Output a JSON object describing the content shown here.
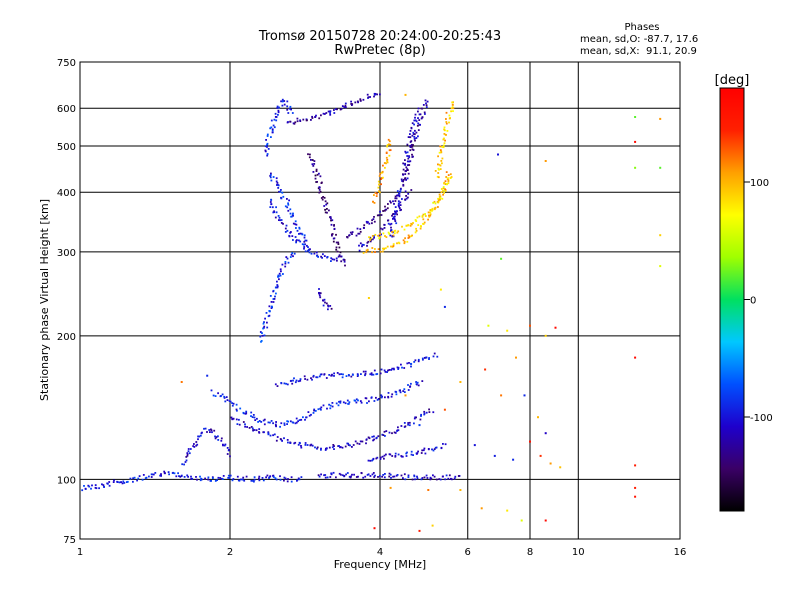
{
  "chart_data": {
    "type": "scatter",
    "title": "Tromsø 20150728 20:24:00-20:25:43",
    "subtitle": "RwPretec (8p)",
    "xlabel": "Frequency [MHz]",
    "ylabel": "Stationary phase Virtual Height [km]",
    "x_scale": "log",
    "y_scale": "log",
    "xlim": [
      1,
      16
    ],
    "ylim": [
      75,
      750
    ],
    "x_ticks": [
      1,
      2,
      4,
      6,
      8,
      10,
      16
    ],
    "y_ticks": [
      75,
      100,
      200,
      300,
      400,
      500,
      600,
      750
    ],
    "grid": true,
    "phases_box": {
      "title": "Phases",
      "line1": "mean, sd,O: -87.7, 17.6",
      "line2": "mean, sd,X:  91.1, 20.9"
    },
    "colorbar": {
      "label": "[deg]",
      "range": [
        -180,
        180
      ],
      "ticks": [
        100,
        0,
        -100
      ],
      "colors": [
        "#000000",
        "#3a0066",
        "#1e00cc",
        "#0050ff",
        "#00c8ff",
        "#00e060",
        "#a0ff00",
        "#ffff00",
        "#ffa000",
        "#ff2000",
        "#ff0000"
      ]
    },
    "trace_series": [
      {
        "x": [
          1.0,
          1.1,
          1.2,
          1.3,
          1.4,
          1.5,
          1.7,
          1.9,
          2.0,
          2.2,
          2.4,
          2.6,
          2.8
        ],
        "y": [
          96,
          97,
          99,
          100,
          102,
          103,
          101,
          100,
          101,
          100,
          101,
          100,
          100
        ],
        "phase": -95
      },
      {
        "x": [
          3.0,
          3.4,
          3.8,
          4.2,
          4.6,
          5.0,
          5.4,
          5.8
        ],
        "y": [
          102,
          102,
          102,
          102,
          101,
          101,
          101,
          101
        ],
        "phase": -110
      },
      {
        "x": [
          1.6,
          1.7,
          1.8,
          1.9,
          2.0
        ],
        "y": [
          108,
          118,
          128,
          122,
          112
        ],
        "phase": -105
      },
      {
        "x": [
          1.85,
          1.95,
          2.1,
          2.3,
          2.5,
          2.7,
          2.9,
          3.1,
          3.4,
          3.7,
          4.0,
          4.3,
          4.6,
          4.9
        ],
        "y": [
          152,
          148,
          140,
          133,
          130,
          132,
          137,
          142,
          145,
          146,
          148,
          152,
          156,
          160
        ],
        "phase": -95
      },
      {
        "x": [
          2.0,
          2.2,
          2.5,
          2.8,
          3.1,
          3.5,
          3.9,
          4.3,
          4.7,
          5.1
        ],
        "y": [
          135,
          128,
          122,
          118,
          116,
          118,
          122,
          127,
          133,
          140
        ],
        "phase": -110
      },
      {
        "x": [
          2.5,
          2.8,
          3.2,
          3.6,
          4.0,
          4.4,
          4.8,
          5.2
        ],
        "y": [
          158,
          163,
          165,
          166,
          168,
          172,
          177,
          183
        ],
        "phase": -100
      },
      {
        "x": [
          3.8,
          4.2,
          4.6,
          5.0,
          5.4
        ],
        "y": [
          110,
          112,
          113,
          115,
          118
        ],
        "phase": -105
      },
      {
        "x": [
          2.3,
          2.35,
          2.4,
          2.45,
          2.5,
          2.55,
          2.6,
          2.7
        ],
        "y": [
          195,
          210,
          228,
          245,
          260,
          275,
          290,
          300
        ],
        "phase": -90
      },
      {
        "x": [
          2.35,
          2.4,
          2.45,
          2.5,
          2.55,
          2.6,
          2.65
        ],
        "y": [
          480,
          520,
          560,
          600,
          625,
          610,
          580
        ],
        "phase": -95
      },
      {
        "x": [
          2.4,
          2.45,
          2.5,
          2.6,
          2.7,
          2.85,
          3.0,
          3.2,
          3.4
        ],
        "y": [
          390,
          370,
          355,
          335,
          320,
          305,
          295,
          290,
          290
        ],
        "phase": -105
      },
      {
        "x": [
          2.4,
          2.5,
          2.6,
          2.7,
          2.8,
          2.9
        ],
        "y": [
          440,
          410,
          380,
          350,
          320,
          300
        ],
        "phase": -95
      },
      {
        "x": [
          2.6,
          2.8,
          3.0,
          3.2,
          3.4,
          3.6,
          3.8,
          4.0
        ],
        "y": [
          560,
          565,
          575,
          590,
          605,
          620,
          635,
          650
        ],
        "phase": -120
      },
      {
        "x": [
          2.9,
          3.0,
          3.1,
          3.2,
          3.3,
          3.4
        ],
        "y": [
          480,
          430,
          380,
          340,
          300,
          280
        ],
        "phase": -135
      },
      {
        "x": [
          3.0,
          3.05,
          3.1,
          3.15,
          3.2
        ],
        "y": [
          250,
          240,
          235,
          230,
          228
        ],
        "phase": -120
      },
      {
        "x": [
          3.4,
          3.6,
          3.8,
          4.0,
          4.2,
          4.4
        ],
        "y": [
          320,
          330,
          345,
          360,
          380,
          400
        ],
        "phase": -125
      },
      {
        "x": [
          3.6,
          3.8,
          4.0,
          4.2,
          4.4,
          4.6
        ],
        "y": [
          305,
          315,
          330,
          350,
          375,
          405
        ],
        "phase": -115
      },
      {
        "x": [
          4.2,
          4.3,
          4.4,
          4.5,
          4.6,
          4.7,
          4.8
        ],
        "y": [
          320,
          360,
          410,
          460,
          520,
          560,
          600
        ],
        "phase": -110
      },
      {
        "x": [
          4.5,
          4.6,
          4.7,
          4.8,
          4.9,
          5.0
        ],
        "y": [
          420,
          470,
          520,
          560,
          600,
          630
        ],
        "phase": -120
      },
      {
        "x": [
          3.7,
          3.9,
          4.1,
          4.3,
          4.5,
          4.7,
          4.9,
          5.1,
          5.3,
          5.5
        ],
        "y": [
          300,
          302,
          305,
          310,
          318,
          330,
          345,
          365,
          395,
          440
        ],
        "phase": 100
      },
      {
        "x": [
          3.8,
          4.1,
          4.4,
          4.7,
          5.0,
          5.3,
          5.6
        ],
        "y": [
          320,
          325,
          333,
          345,
          362,
          390,
          440
        ],
        "phase": 85
      },
      {
        "x": [
          3.9,
          4.0,
          4.1,
          4.2
        ],
        "y": [
          380,
          420,
          460,
          520
        ],
        "phase": 105
      },
      {
        "x": [
          5.2,
          5.3,
          5.4,
          5.5,
          5.6
        ],
        "y": [
          430,
          480,
          530,
          580,
          620
        ],
        "phase": 95
      }
    ],
    "scatter_points": [
      {
        "x": 4.5,
        "y": 640,
        "phase": 100
      },
      {
        "x": 5.6,
        "y": 610,
        "phase": 110
      },
      {
        "x": 3.8,
        "y": 240,
        "phase": 90
      },
      {
        "x": 5.3,
        "y": 250,
        "phase": 80
      },
      {
        "x": 5.4,
        "y": 230,
        "phase": -90
      },
      {
        "x": 6.9,
        "y": 480,
        "phase": -100
      },
      {
        "x": 8.6,
        "y": 465,
        "phase": 110
      },
      {
        "x": 13.0,
        "y": 575,
        "phase": 20
      },
      {
        "x": 13.0,
        "y": 510,
        "phase": 170
      },
      {
        "x": 13.0,
        "y": 450,
        "phase": 30
      },
      {
        "x": 14.6,
        "y": 570,
        "phase": 110
      },
      {
        "x": 14.6,
        "y": 450,
        "phase": 20
      },
      {
        "x": 14.6,
        "y": 325,
        "phase": 90
      },
      {
        "x": 14.6,
        "y": 280,
        "phase": 60
      },
      {
        "x": 13.0,
        "y": 180,
        "phase": 170
      },
      {
        "x": 13.0,
        "y": 107,
        "phase": 150
      },
      {
        "x": 13.0,
        "y": 96,
        "phase": 150
      },
      {
        "x": 13.0,
        "y": 92,
        "phase": 160
      },
      {
        "x": 7.0,
        "y": 290,
        "phase": 20
      },
      {
        "x": 6.6,
        "y": 210,
        "phase": 60
      },
      {
        "x": 7.2,
        "y": 205,
        "phase": 80
      },
      {
        "x": 8.0,
        "y": 210,
        "phase": 130
      },
      {
        "x": 8.6,
        "y": 200,
        "phase": 90
      },
      {
        "x": 9.0,
        "y": 208,
        "phase": 170
      },
      {
        "x": 7.5,
        "y": 180,
        "phase": 110
      },
      {
        "x": 6.5,
        "y": 170,
        "phase": 140
      },
      {
        "x": 7.0,
        "y": 150,
        "phase": 120
      },
      {
        "x": 7.8,
        "y": 150,
        "phase": -90
      },
      {
        "x": 8.3,
        "y": 135,
        "phase": 100
      },
      {
        "x": 8.6,
        "y": 125,
        "phase": -110
      },
      {
        "x": 8.0,
        "y": 120,
        "phase": 160
      },
      {
        "x": 8.4,
        "y": 112,
        "phase": 140
      },
      {
        "x": 8.8,
        "y": 108,
        "phase": 110
      },
      {
        "x": 9.2,
        "y": 106,
        "phase": 95
      },
      {
        "x": 6.2,
        "y": 118,
        "phase": -100
      },
      {
        "x": 6.8,
        "y": 112,
        "phase": -95
      },
      {
        "x": 7.4,
        "y": 110,
        "phase": -90
      },
      {
        "x": 6.4,
        "y": 87,
        "phase": 110
      },
      {
        "x": 7.2,
        "y": 86,
        "phase": 80
      },
      {
        "x": 7.7,
        "y": 82,
        "phase": 60
      },
      {
        "x": 8.6,
        "y": 82,
        "phase": 170
      },
      {
        "x": 5.1,
        "y": 80,
        "phase": 90
      },
      {
        "x": 4.8,
        "y": 78,
        "phase": 150
      },
      {
        "x": 3.9,
        "y": 79,
        "phase": 170
      },
      {
        "x": 4.2,
        "y": 96,
        "phase": 110
      },
      {
        "x": 5.0,
        "y": 95,
        "phase": 120
      },
      {
        "x": 5.8,
        "y": 95,
        "phase": 100
      },
      {
        "x": 1.6,
        "y": 160,
        "phase": 120
      },
      {
        "x": 1.8,
        "y": 165,
        "phase": -90
      },
      {
        "x": 5.8,
        "y": 160,
        "phase": 100
      },
      {
        "x": 5.4,
        "y": 140,
        "phase": 130
      },
      {
        "x": 4.5,
        "y": 150,
        "phase": 110
      },
      {
        "x": 4.8,
        "y": 130,
        "phase": -80
      }
    ]
  }
}
